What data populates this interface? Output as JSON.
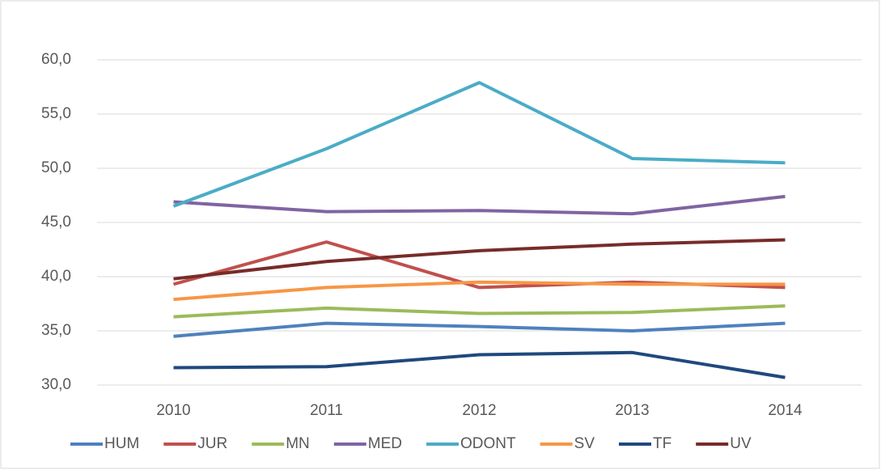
{
  "chart_data": {
    "type": "line",
    "categories": [
      "2010",
      "2011",
      "2012",
      "2013",
      "2014"
    ],
    "series": [
      {
        "name": "HUM",
        "color": "#4f81bd",
        "values": [
          34.5,
          35.7,
          35.4,
          35.0,
          35.7
        ]
      },
      {
        "name": "JUR",
        "color": "#c0504d",
        "values": [
          39.3,
          43.2,
          39.0,
          39.5,
          39.0
        ]
      },
      {
        "name": "MN",
        "color": "#9bbb59",
        "values": [
          36.3,
          37.1,
          36.6,
          36.7,
          37.3
        ]
      },
      {
        "name": "MED",
        "color": "#8064a2",
        "values": [
          46.9,
          46.0,
          46.1,
          45.8,
          47.4
        ]
      },
      {
        "name": "ODONT",
        "color": "#4bacc6",
        "values": [
          46.5,
          51.8,
          57.9,
          50.9,
          50.5
        ]
      },
      {
        "name": "SV",
        "color": "#f79646",
        "values": [
          37.9,
          39.0,
          39.5,
          39.3,
          39.3
        ]
      },
      {
        "name": "TF",
        "color": "#1f497d",
        "values": [
          31.6,
          31.7,
          32.8,
          33.0,
          30.7
        ]
      },
      {
        "name": "UV",
        "color": "#772c2a",
        "values": [
          39.8,
          41.4,
          42.4,
          43.0,
          43.4
        ]
      }
    ],
    "ylim": [
      30,
      60
    ],
    "yticks": [
      {
        "value": 30,
        "label": "30,0"
      },
      {
        "value": 35,
        "label": "35,0"
      },
      {
        "value": 40,
        "label": "40,0"
      },
      {
        "value": 45,
        "label": "45,0"
      },
      {
        "value": 50,
        "label": "50,0"
      },
      {
        "value": 55,
        "label": "55,0"
      },
      {
        "value": 60,
        "label": "60,0"
      }
    ],
    "grid": true,
    "legend": "bottom"
  }
}
